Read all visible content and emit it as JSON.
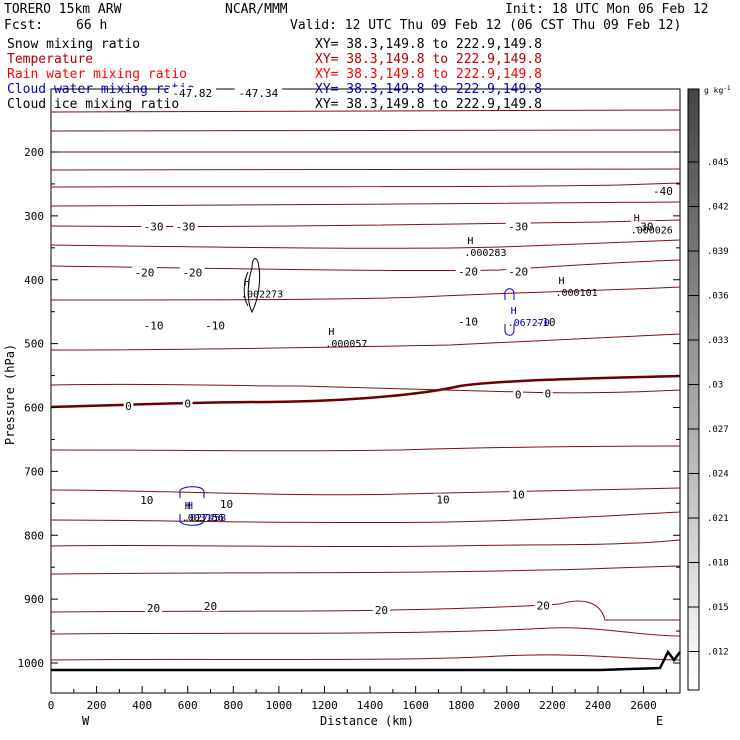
{
  "header": {
    "model": "TORERO  15km ARW",
    "org": "NCAR/MMM",
    "init": "Init: 18 UTC Mon 06 Feb 12",
    "fcst_label": "Fcst:",
    "fcst_value": "66 h",
    "valid": "Valid: 12 UTC Thu 09 Feb 12 (06 CST Thu 09 Feb 12)"
  },
  "fields": [
    {
      "name": "Snow mixing ratio",
      "xy": "XY=  38.3,149.8 to 222.9,149.8",
      "color": "#000000"
    },
    {
      "name": "Temperature",
      "xy": "XY=  38.3,149.8 to 222.9,149.8",
      "color": "#b00000"
    },
    {
      "name": "Rain water mixing ratio",
      "xy": "XY=  38.3,149.8 to 222.9,149.8",
      "color": "#ff0000"
    },
    {
      "name": "Cloud water mixing ratio",
      "xy": "XY=  38.3,149.8 to 222.9,149.8",
      "color": "#0000c0"
    },
    {
      "name": "Cloud ice mixing ratio",
      "xy": "XY=  38.3,149.8 to 222.9,149.8",
      "color": "#000000"
    }
  ],
  "colors": {
    "temperature": "#7a1010",
    "freezing": "#6a0000",
    "cloud_water": "#0000c8",
    "snow": "#000000",
    "terrain": "#000000"
  },
  "chart_data": {
    "type": "cross-section contour",
    "xlabel": "Distance (km)",
    "ylabel": "Pressure (hPa)",
    "xlim": [
      0,
      2760
    ],
    "x_ticks": [
      0,
      200,
      400,
      600,
      800,
      1000,
      1200,
      1400,
      1600,
      1800,
      2000,
      2200,
      2400,
      2600
    ],
    "x_tick_labels": [
      "0",
      "200",
      "400",
      "600",
      "800",
      "1000",
      "1200",
      "1400",
      "1600",
      "1800",
      "2000",
      "2200",
      "2400",
      "2600"
    ],
    "y_ticks": [
      200,
      300,
      400,
      500,
      600,
      700,
      800,
      900,
      1000
    ],
    "y_tick_labels": [
      "200",
      "300",
      "400",
      "500",
      "600",
      "700",
      "800",
      "900",
      "1000"
    ],
    "endpoints": {
      "left": "W",
      "right": "E"
    },
    "temperature_labels": [
      {
        "text": "-47.82",
        "x": 620,
        "p": 108
      },
      {
        "text": "-47.34",
        "x": 910,
        "p": 108
      },
      {
        "text": "-40",
        "x": 2685,
        "p": 261
      },
      {
        "text": "-30",
        "x": 450,
        "p": 317
      },
      {
        "text": "-30",
        "x": 590,
        "p": 317
      },
      {
        "text": "-30",
        "x": 2050,
        "p": 317
      },
      {
        "text": "-30",
        "x": 2600,
        "p": 317
      },
      {
        "text": "-20",
        "x": 410,
        "p": 389
      },
      {
        "text": "-20",
        "x": 620,
        "p": 389
      },
      {
        "text": "-20",
        "x": 1830,
        "p": 387
      },
      {
        "text": "-20",
        "x": 2050,
        "p": 387
      },
      {
        "text": "-10",
        "x": 450,
        "p": 472
      },
      {
        "text": "-10",
        "x": 720,
        "p": 472
      },
      {
        "text": "-10",
        "x": 1830,
        "p": 465
      },
      {
        "text": "-10",
        "x": 2170,
        "p": 466
      },
      {
        "text": "0",
        "x": 340,
        "p": 598
      },
      {
        "text": "0",
        "x": 600,
        "p": 594
      },
      {
        "text": "0",
        "x": 2050,
        "p": 580
      },
      {
        "text": "0",
        "x": 2180,
        "p": 578
      },
      {
        "text": "10",
        "x": 420,
        "p": 745
      },
      {
        "text": "10",
        "x": 770,
        "p": 751
      },
      {
        "text": "10",
        "x": 1720,
        "p": 744
      },
      {
        "text": "10",
        "x": 2050,
        "p": 736
      },
      {
        "text": "20",
        "x": 450,
        "p": 914
      },
      {
        "text": "20",
        "x": 700,
        "p": 911
      },
      {
        "text": "20",
        "x": 1450,
        "p": 917
      },
      {
        "text": "20",
        "x": 2160,
        "p": 910
      }
    ],
    "maxima": [
      {
        "mark": "H",
        "value": ".002273",
        "x": 860,
        "p": 415,
        "field": "snow"
      },
      {
        "mark": "H",
        "value": ".000057",
        "x": 1230,
        "p": 493,
        "field": "snow"
      },
      {
        "mark": "H",
        "value": ".000283",
        "x": 1840,
        "p": 350,
        "field": "snow"
      },
      {
        "mark": "H",
        "value": ".000101",
        "x": 2240,
        "p": 413,
        "field": "snow"
      },
      {
        "mark": "H",
        "value": ".000026",
        "x": 2570,
        "p": 315,
        "field": "snow"
      },
      {
        "mark": "H",
        "value": ".067270",
        "x": 2030,
        "p": 460,
        "field": "cloud_water"
      },
      {
        "mark": "H",
        "value": ".027458",
        "x": 610,
        "p": 765,
        "field": "cloud_water"
      },
      {
        "mark": "H",
        "value": ".003156",
        "x": 600,
        "p": 765,
        "field": "snow"
      }
    ],
    "colorbar": {
      "unit": "g kg",
      "unit_exp": "-1",
      "ticks": [
        ".045",
        ".042",
        ".039",
        ".036",
        ".033",
        ".03",
        ".027",
        ".024",
        ".021",
        ".018",
        ".015",
        ".012"
      ],
      "range": [
        0.009,
        0.048
      ]
    }
  }
}
